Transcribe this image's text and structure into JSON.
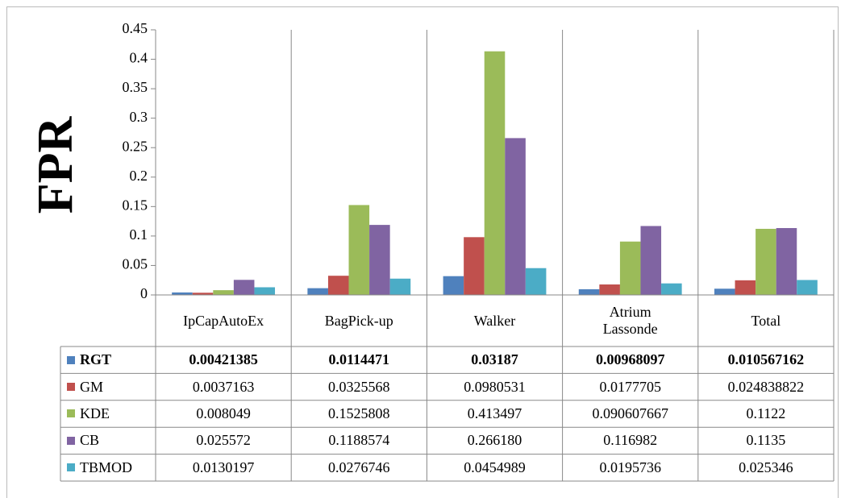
{
  "chart_data": {
    "type": "bar",
    "y_label": "FPR",
    "categories": [
      "IpCapAutoEx",
      "BagPick-up",
      "Walker",
      "Atrium Lassonde",
      "Total"
    ],
    "series": [
      {
        "name": "RGT",
        "color": "#4f81bd",
        "values": [
          0.00421385,
          0.0114471,
          0.03187,
          0.00968097,
          0.010567162
        ]
      },
      {
        "name": "GM",
        "color": "#c0504d",
        "values": [
          0.0037163,
          0.0325568,
          0.0980531,
          0.0177705,
          0.024838822
        ]
      },
      {
        "name": "KDE",
        "color": "#9bbb59",
        "values": [
          0.008049,
          0.1525808,
          0.413497,
          0.090607667,
          0.1122
        ]
      },
      {
        "name": "CB",
        "color": "#8064a2",
        "values": [
          0.025572,
          0.1188574,
          0.26618,
          0.116982,
          0.1135
        ],
        "value_labels": [
          "0.025572",
          "0.1188574",
          "0.266180",
          "0.116982",
          "0.1135"
        ]
      },
      {
        "name": "TBMOD",
        "color": "#4bacc6",
        "values": [
          0.0130197,
          0.0276746,
          0.0454989,
          0.0195736,
          0.025346
        ]
      }
    ],
    "ylim": [
      0,
      0.45
    ],
    "yticks": [
      0,
      0.05,
      0.1,
      0.15,
      0.2,
      0.25,
      0.3,
      0.35,
      0.4,
      0.45
    ],
    "grid": false,
    "bold_series": "RGT"
  }
}
